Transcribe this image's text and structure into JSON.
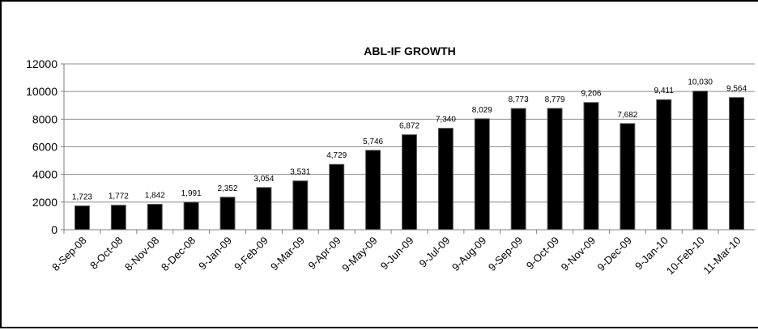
{
  "chart_data": {
    "type": "bar",
    "title": "ABL-IF GROWTH",
    "xlabel": "",
    "ylabel": "",
    "categories": [
      "8-Sep-08",
      "8-Oct-08",
      "8-Nov-08",
      "8-Dec-08",
      "9-Jan-09",
      "9-Feb-09",
      "9-Mar-09",
      "9-Apr-09",
      "9-May-09",
      "9-Jun-09",
      "9-Jul-09",
      "9-Aug-09",
      "9-Sep-09",
      "9-Oct-09",
      "9-Nov-09",
      "9-Dec-09",
      "9-Jan-10",
      "10-Feb-10",
      "11-Mar-10"
    ],
    "values": [
      1723,
      1772,
      1842,
      1991,
      2352,
      3054,
      3531,
      4729,
      5746,
      6872,
      7340,
      8029,
      8773,
      8779,
      9206,
      7682,
      9411,
      10030,
      9564
    ],
    "data_labels": [
      "1,723",
      "1,772",
      "1,842",
      "1,991",
      "2,352",
      "3,054",
      "3,531",
      "4,729",
      "5,746",
      "6,872",
      "7,340",
      "8,029",
      "8,773",
      "8,779",
      "9,206",
      "7,682",
      "9,411",
      "10,030",
      "9,564"
    ],
    "ylim": [
      0,
      12000
    ],
    "y_ticks": [
      0,
      2000,
      4000,
      6000,
      8000,
      10000,
      12000
    ],
    "y_tick_labels": [
      "0",
      "2000",
      "4000",
      "6000",
      "8000",
      "10000",
      "12000"
    ],
    "grid": true,
    "legend": "none",
    "colors": {
      "bar_fill": "#000000",
      "bar_edge": "#5a5a5a",
      "gridline": "#8c8c8c",
      "axis": "#808080",
      "frame": "#000000"
    }
  }
}
